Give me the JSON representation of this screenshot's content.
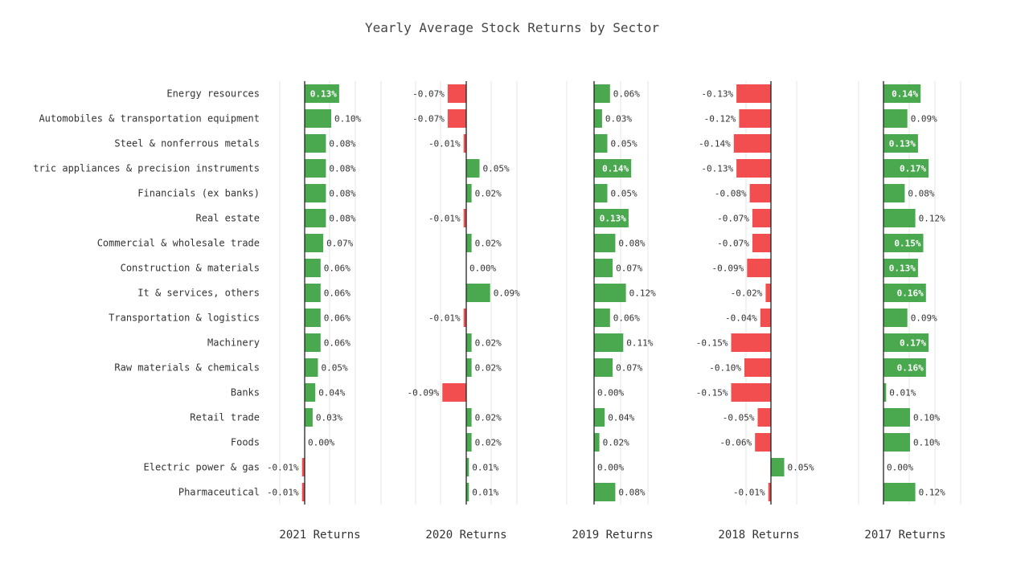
{
  "chart_data": {
    "type": "bar",
    "orientation": "horizontal",
    "title": "Yearly Average Stock Returns by Sector",
    "categories": [
      "Energy resources",
      "Automobiles & transportation equipment",
      "Steel & nonferrous metals",
      "tric appliances & precision instruments",
      "Financials  (ex banks)",
      "Real estate",
      "Commercial & wholesale trade",
      "Construction & materials",
      "It & services, others",
      "Transportation & logistics",
      "Machinery",
      "Raw materials & chemicals",
      "Banks",
      "Retail trade",
      "Foods",
      "Electric power & gas",
      "Pharmaceutical"
    ],
    "series": [
      {
        "name": "2021 Returns",
        "values": [
          0.13,
          0.1,
          0.08,
          0.08,
          0.08,
          0.08,
          0.07,
          0.06,
          0.06,
          0.06,
          0.06,
          0.05,
          0.04,
          0.03,
          0.0,
          -0.01,
          -0.01
        ],
        "labels": [
          "0.13%",
          "0.10%",
          "0.08%",
          "0.08%",
          "0.08%",
          "0.08%",
          "0.07%",
          "0.06%",
          "0.06%",
          "0.06%",
          "0.06%",
          "0.05%",
          "0.04%",
          "0.03%",
          "0.00%",
          "-0.01%",
          "-0.01%"
        ]
      },
      {
        "name": "2020 Returns",
        "values": [
          -0.07,
          -0.07,
          -0.01,
          0.05,
          0.02,
          -0.01,
          0.02,
          0.0,
          0.09,
          -0.01,
          0.02,
          0.02,
          -0.09,
          0.02,
          0.02,
          0.01,
          0.01
        ],
        "labels": [
          "-0.07%",
          "-0.07%",
          "-0.01%",
          "0.05%",
          "0.02%",
          "-0.01%",
          "0.02%",
          "0.00%",
          "0.09%",
          "-0.01%",
          "0.02%",
          "0.02%",
          "-0.09%",
          "0.02%",
          "0.02%",
          "0.01%",
          "0.01%"
        ]
      },
      {
        "name": "2019 Returns",
        "values": [
          0.06,
          0.03,
          0.05,
          0.14,
          0.05,
          0.13,
          0.08,
          0.07,
          0.12,
          0.06,
          0.11,
          0.07,
          0.0,
          0.04,
          0.02,
          0.0,
          0.08
        ],
        "labels": [
          "0.06%",
          "0.03%",
          "0.05%",
          "0.14%",
          "0.05%",
          "0.13%",
          "0.08%",
          "0.07%",
          "0.12%",
          "0.06%",
          "0.11%",
          "0.07%",
          "0.00%",
          "0.04%",
          "0.02%",
          "0.00%",
          "0.08%"
        ]
      },
      {
        "name": "2018 Returns",
        "values": [
          -0.13,
          -0.12,
          -0.14,
          -0.13,
          -0.08,
          -0.07,
          -0.07,
          -0.09,
          -0.02,
          -0.04,
          -0.15,
          -0.1,
          -0.15,
          -0.05,
          -0.06,
          0.05,
          -0.01
        ],
        "labels": [
          "-0.13%",
          "-0.12%",
          "-0.14%",
          "-0.13%",
          "-0.08%",
          "-0.07%",
          "-0.07%",
          "-0.09%",
          "-0.02%",
          "-0.04%",
          "-0.15%",
          "-0.10%",
          "-0.15%",
          "-0.05%",
          "-0.06%",
          "0.05%",
          "-0.01%"
        ]
      },
      {
        "name": "2017 Returns",
        "values": [
          0.14,
          0.09,
          0.13,
          0.17,
          0.08,
          0.12,
          0.15,
          0.13,
          0.16,
          0.09,
          0.17,
          0.16,
          0.01,
          0.1,
          0.1,
          0.0,
          0.12
        ],
        "labels": [
          "0.14%",
          "0.09%",
          "0.13%",
          "0.17%",
          "0.08%",
          "0.12%",
          "0.15%",
          "0.13%",
          "0.16%",
          "0.09%",
          "0.17%",
          "0.16%",
          "0.01%",
          "0.10%",
          "0.10%",
          "0.00%",
          "0.12%"
        ]
      }
    ],
    "grid": true,
    "legend": "none"
  },
  "colors": {
    "positive": "#4aa84f",
    "negative": "#f24e50"
  }
}
